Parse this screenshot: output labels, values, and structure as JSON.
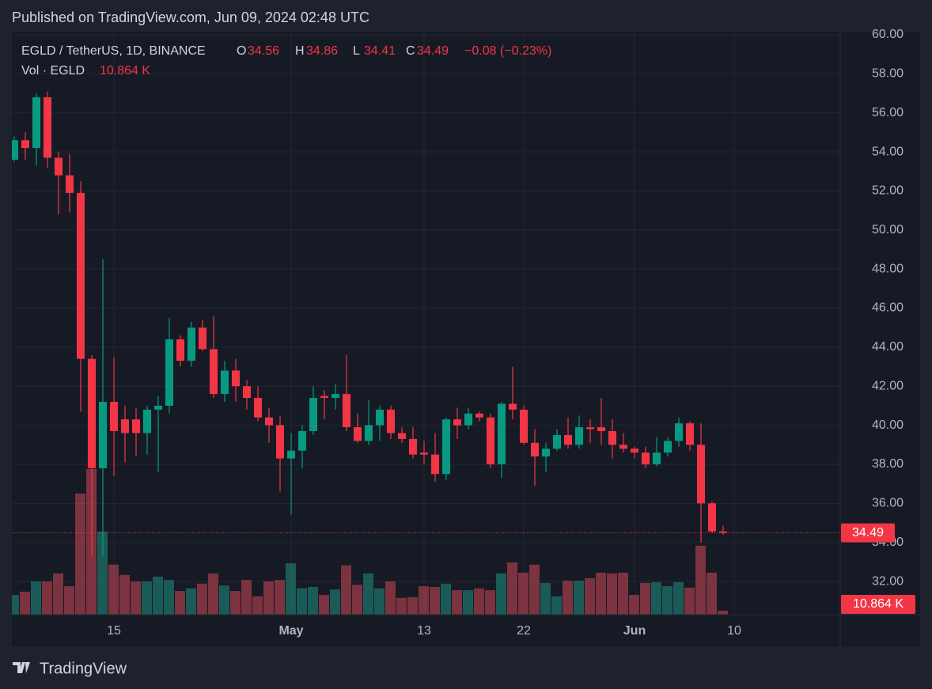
{
  "published": "Published on TradingView.com, Jun 09, 2024 02:48 UTC",
  "brand": "TradingView",
  "chart_data": {
    "type": "candlestick",
    "title": "EGLD / TetherUS, 1D, BINANCE",
    "ohlc_letters": [
      "O",
      "H",
      "L",
      "C"
    ],
    "change_label": "−0.08 (−0.23%)",
    "volume_title": "Vol · EGLD",
    "last_volume_label": "10.864 K",
    "up_color": "#089981",
    "down_color": "#f23645",
    "up_volume_color": "#22ab94",
    "down_volume_color": "#f7525f",
    "grid": true,
    "x": [
      "2024-04-06",
      "2024-04-07",
      "2024-04-08",
      "2024-04-09",
      "2024-04-10",
      "2024-04-11",
      "2024-04-12",
      "2024-04-13",
      "2024-04-14",
      "2024-04-15",
      "2024-04-16",
      "2024-04-17",
      "2024-04-18",
      "2024-04-19",
      "2024-04-20",
      "2024-04-21",
      "2024-04-22",
      "2024-04-23",
      "2024-04-24",
      "2024-04-25",
      "2024-04-26",
      "2024-04-27",
      "2024-04-28",
      "2024-04-29",
      "2024-04-30",
      "2024-05-01",
      "2024-05-02",
      "2024-05-03",
      "2024-05-04",
      "2024-05-05",
      "2024-05-06",
      "2024-05-07",
      "2024-05-08",
      "2024-05-09",
      "2024-05-10",
      "2024-05-11",
      "2024-05-12",
      "2024-05-13",
      "2024-05-14",
      "2024-05-15",
      "2024-05-16",
      "2024-05-17",
      "2024-05-18",
      "2024-05-19",
      "2024-05-20",
      "2024-05-21",
      "2024-05-22",
      "2024-05-23",
      "2024-05-24",
      "2024-05-25",
      "2024-05-26",
      "2024-05-27",
      "2024-05-28",
      "2024-05-29",
      "2024-05-30",
      "2024-05-31",
      "2024-06-01",
      "2024-06-02",
      "2024-06-03",
      "2024-06-04",
      "2024-06-05",
      "2024-06-06",
      "2024-06-07",
      "2024-06-08",
      "2024-06-09"
    ],
    "open": [
      53.6,
      54.6,
      54.2,
      56.8,
      53.7,
      52.8,
      51.9,
      43.4,
      37.8,
      41.2,
      40.3,
      40.3,
      39.6,
      40.8,
      41.0,
      44.4,
      43.3,
      45.0,
      43.9,
      41.6,
      42.8,
      42.0,
      41.4,
      40.4,
      40.0,
      38.3,
      38.7,
      39.7,
      41.5,
      41.4,
      41.6,
      39.9,
      39.2,
      40.0,
      40.8,
      39.6,
      39.3,
      38.6,
      38.5,
      37.5,
      40.3,
      40.0,
      40.6,
      40.4,
      38.0,
      41.1,
      40.8,
      39.1,
      38.4,
      38.8,
      39.5,
      39.0,
      39.9,
      39.9,
      39.7,
      39.0,
      38.8,
      38.6,
      38.0,
      38.6,
      39.2,
      40.1,
      39.0,
      36.0,
      34.56
    ],
    "high": [
      54.8,
      55.0,
      57.0,
      57.1,
      54.0,
      53.9,
      52.5,
      43.6,
      48.5,
      43.5,
      41.0,
      40.9,
      41.0,
      41.5,
      45.5,
      44.6,
      45.3,
      45.4,
      45.6,
      43.3,
      43.4,
      42.3,
      42.0,
      40.9,
      40.5,
      39.6,
      40.0,
      42.0,
      41.8,
      42.1,
      43.6,
      40.6,
      41.3,
      41.0,
      41.0,
      39.9,
      39.9,
      39.2,
      39.6,
      40.4,
      40.9,
      40.9,
      40.7,
      40.6,
      41.2,
      43.0,
      41.0,
      39.8,
      39.1,
      39.8,
      40.4,
      40.5,
      40.3,
      41.4,
      40.3,
      39.6,
      38.9,
      38.9,
      39.4,
      39.4,
      40.4,
      40.2,
      40.1,
      36.1,
      34.86
    ],
    "low": [
      53.5,
      53.6,
      53.3,
      53.2,
      50.8,
      50.9,
      40.7,
      33.3,
      33.3,
      37.4,
      38.1,
      38.4,
      38.5,
      37.6,
      40.6,
      43.0,
      43.0,
      43.8,
      41.4,
      41.2,
      41.2,
      40.8,
      40.2,
      39.1,
      36.6,
      35.4,
      37.8,
      39.5,
      40.3,
      40.8,
      39.7,
      39.1,
      39.0,
      39.2,
      39.3,
      39.1,
      38.3,
      38.0,
      37.1,
      37.2,
      39.3,
      39.8,
      40.2,
      37.8,
      37.3,
      40.3,
      39.0,
      36.9,
      37.6,
      38.7,
      38.8,
      38.8,
      39.1,
      39.0,
      38.3,
      38.6,
      38.3,
      37.8,
      37.9,
      38.4,
      38.9,
      38.7,
      34.0,
      34.5,
      34.41
    ],
    "close": [
      54.6,
      54.2,
      56.8,
      53.7,
      52.8,
      51.9,
      43.4,
      37.8,
      41.2,
      39.7,
      39.6,
      39.6,
      40.8,
      41.0,
      44.4,
      43.3,
      45.0,
      43.9,
      41.6,
      42.8,
      42.0,
      41.4,
      40.4,
      40.0,
      38.3,
      38.7,
      39.7,
      41.4,
      41.4,
      41.6,
      39.9,
      39.2,
      40.0,
      40.8,
      39.6,
      39.3,
      38.5,
      38.5,
      37.5,
      40.3,
      40.0,
      40.6,
      40.4,
      38.0,
      41.1,
      40.8,
      39.1,
      38.4,
      38.8,
      39.5,
      39.0,
      39.9,
      39.8,
      39.7,
      39.0,
      38.8,
      38.6,
      38.0,
      38.6,
      39.2,
      40.1,
      39.0,
      36.0,
      34.56,
      34.49
    ],
    "volume": [
      54,
      63,
      91,
      91,
      113,
      78,
      332,
      399,
      228,
      137,
      109,
      91,
      91,
      104,
      95,
      65,
      72,
      85,
      113,
      80,
      65,
      95,
      50,
      91,
      95,
      141,
      72,
      76,
      54,
      69,
      135,
      82,
      113,
      72,
      91,
      46,
      48,
      78,
      76,
      85,
      67,
      67,
      72,
      67,
      113,
      143,
      115,
      137,
      87,
      50,
      93,
      93,
      100,
      115,
      113,
      115,
      54,
      87,
      89,
      78,
      89,
      74,
      189,
      115,
      10.864
    ],
    "xlim": [
      "2024-04-06",
      "2024-06-20"
    ],
    "xticks": [
      {
        "value": "2024-04-15",
        "label": "15"
      },
      {
        "value": "2024-05-01",
        "label": "May"
      },
      {
        "value": "2024-05-13",
        "label": "13"
      },
      {
        "value": "2024-05-22",
        "label": "22"
      },
      {
        "value": "2024-06-01",
        "label": "Jun"
      },
      {
        "value": "2024-06-10",
        "label": "10"
      }
    ],
    "ylim": [
      30.3,
      60.16
    ],
    "yticks": [
      {
        "value": 32,
        "label": "32.00"
      },
      {
        "value": 34,
        "label": "34.00"
      },
      {
        "value": 36,
        "label": "36.00"
      },
      {
        "value": 38,
        "label": "38.00"
      },
      {
        "value": 40,
        "label": "40.00"
      },
      {
        "value": 42,
        "label": "42.00"
      },
      {
        "value": 44,
        "label": "44.00"
      },
      {
        "value": 46,
        "label": "46.00"
      },
      {
        "value": 48,
        "label": "48.00"
      },
      {
        "value": 50,
        "label": "50.00"
      },
      {
        "value": 52,
        "label": "52.00"
      },
      {
        "value": 54,
        "label": "54.00"
      },
      {
        "value": 56,
        "label": "56.00"
      },
      {
        "value": 58,
        "label": "58.00"
      },
      {
        "value": 60,
        "label": "60.00"
      }
    ]
  }
}
